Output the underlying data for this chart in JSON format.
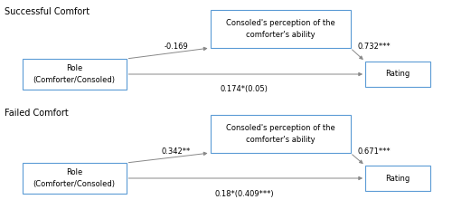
{
  "background_color": "#ffffff",
  "fig_width": 5.0,
  "fig_height": 2.31,
  "top_label": "Successful Comfort",
  "bottom_label": "Failed Comfort",
  "top_mediator_text": "Consoled's perception of the\ncomforter's ability",
  "bottom_mediator_text": "Consoled's perception of the\ncomforter's ability",
  "role_text": "Role\n(Comforter/Consoled)",
  "rating_text": "Rating",
  "top_coef_left": "-0.169",
  "top_coef_right": "0.732***",
  "top_coef_direct": "0.174*(0.05)",
  "bottom_coef_left": "0.342**",
  "bottom_coef_right": "0.671***",
  "bottom_coef_direct": "0.18*(0.409***)",
  "box_color": "#ffffff",
  "box_edge_color": "#5b9bd5",
  "text_color": "#000000",
  "arrow_color": "#888888",
  "font_size": 6.0,
  "label_font_size": 7.0
}
